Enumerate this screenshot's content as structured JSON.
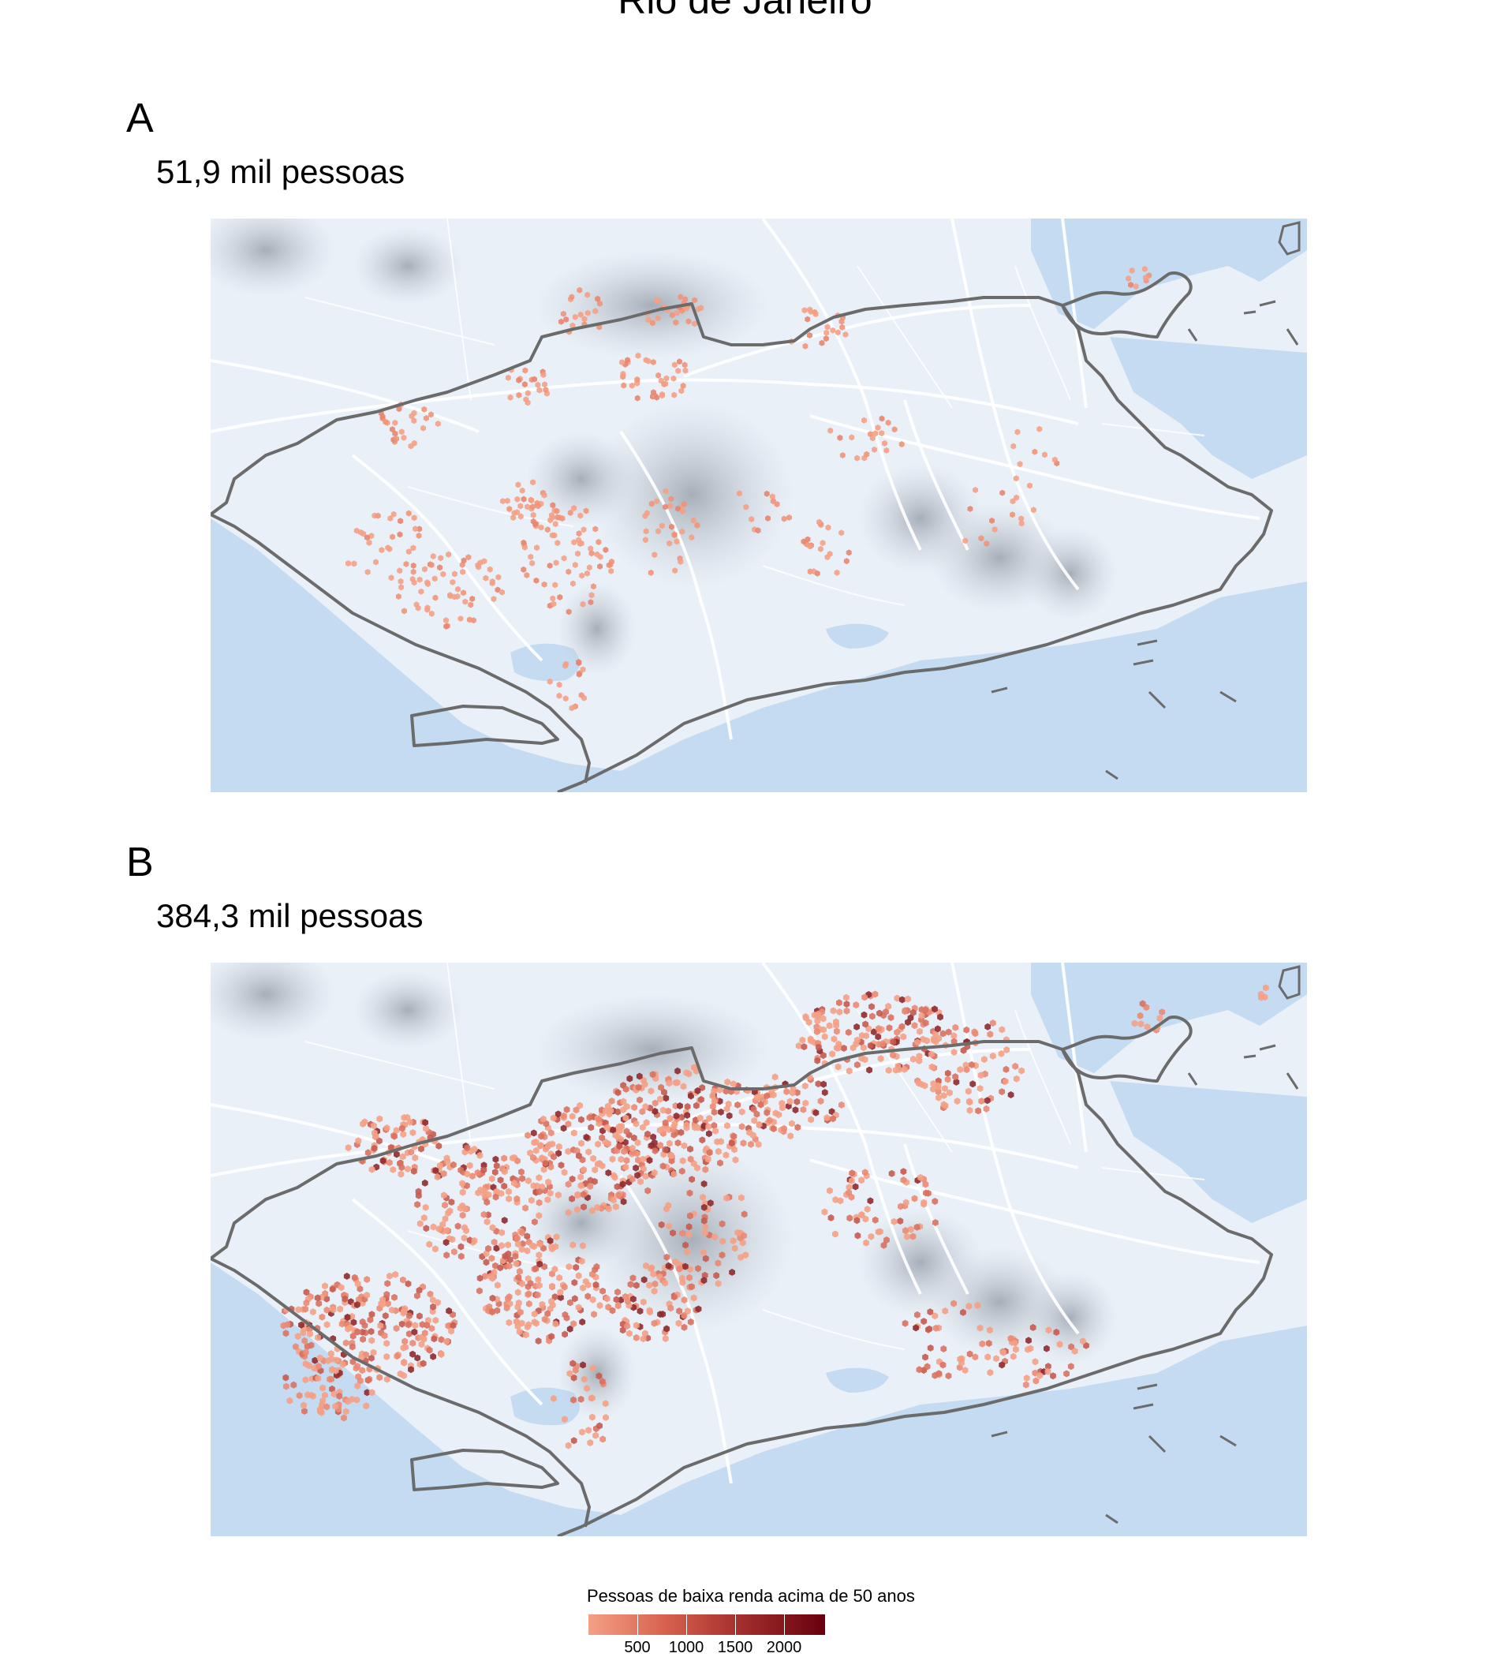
{
  "title": "Rio de Janeiro",
  "panels": [
    {
      "letter": "A",
      "subtitle": "51,9 mil pessoas"
    },
    {
      "letter": "B",
      "subtitle": "384,3 mil pessoas"
    }
  ],
  "legend": {
    "title": "Pessoas de baixa renda acima de 50 anos",
    "ticks": [
      "500",
      "1000",
      "1500",
      "2000"
    ],
    "colors": [
      "#f4a085",
      "#d6604d",
      "#a02b2b",
      "#67000d"
    ]
  },
  "colors": {
    "water": "#c5dbf2",
    "land": "#eaf0f8",
    "boundary": "#6b6b6b",
    "hex_low": "#f4a085",
    "hex_high": "#67000d"
  }
}
